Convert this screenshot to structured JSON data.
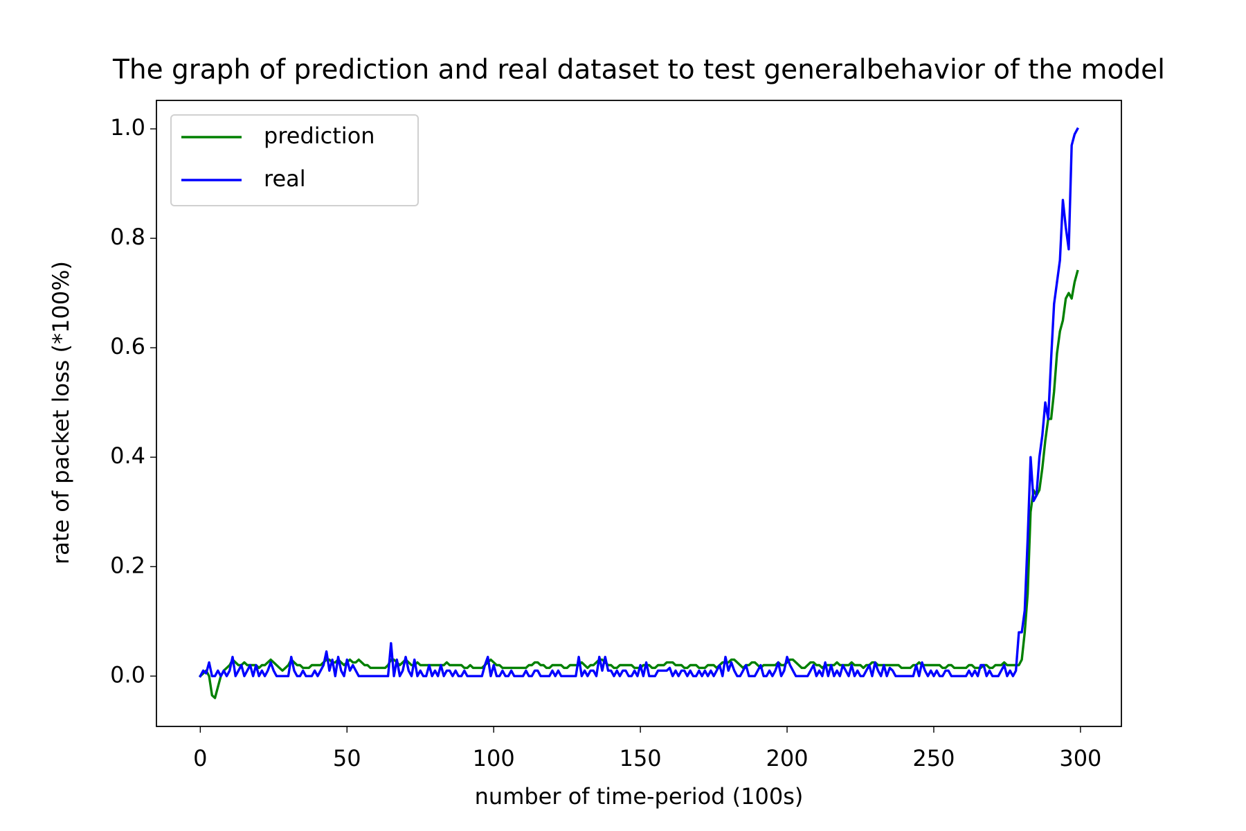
{
  "chart_data": {
    "type": "line",
    "title": "The graph of prediction and real dataset to test generalbehavior of the model",
    "x_label": "number of time-period (100s)",
    "y_label": "rate of packet loss (*100%)",
    "xlim": [
      -14.95,
      313.95
    ],
    "ylim": [
      -0.092,
      1.052
    ],
    "xticks": [
      0,
      50,
      100,
      150,
      200,
      250,
      300
    ],
    "yticks": [
      {
        "value": 0,
        "label": "0.0"
      },
      0.2,
      0.4,
      0.6,
      0.8,
      {
        "value": 1,
        "label": "1.0"
      }
    ],
    "legend": "upper left",
    "grid": false,
    "x": [
      0,
      1,
      2,
      3,
      4,
      5,
      6,
      7,
      8,
      9,
      10,
      11,
      12,
      13,
      14,
      15,
      16,
      17,
      18,
      19,
      20,
      21,
      22,
      23,
      24,
      25,
      26,
      27,
      28,
      29,
      30,
      31,
      32,
      33,
      34,
      35,
      36,
      37,
      38,
      39,
      40,
      41,
      42,
      43,
      44,
      45,
      46,
      47,
      48,
      49,
      50,
      51,
      52,
      53,
      54,
      55,
      56,
      57,
      58,
      59,
      60,
      61,
      62,
      63,
      64,
      65,
      66,
      67,
      68,
      69,
      70,
      71,
      72,
      73,
      74,
      75,
      76,
      77,
      78,
      79,
      80,
      81,
      82,
      83,
      84,
      85,
      86,
      87,
      88,
      89,
      90,
      91,
      92,
      93,
      94,
      95,
      96,
      97,
      98,
      99,
      100,
      101,
      102,
      103,
      104,
      105,
      106,
      107,
      108,
      109,
      110,
      111,
      112,
      113,
      114,
      115,
      116,
      117,
      118,
      119,
      120,
      121,
      122,
      123,
      124,
      125,
      126,
      127,
      128,
      129,
      130,
      131,
      132,
      133,
      134,
      135,
      136,
      137,
      138,
      139,
      140,
      141,
      142,
      143,
      144,
      145,
      146,
      147,
      148,
      149,
      150,
      151,
      152,
      153,
      154,
      155,
      156,
      157,
      158,
      159,
      160,
      161,
      162,
      163,
      164,
      165,
      166,
      167,
      168,
      169,
      170,
      171,
      172,
      173,
      174,
      175,
      176,
      177,
      178,
      179,
      180,
      181,
      182,
      183,
      184,
      185,
      186,
      187,
      188,
      189,
      190,
      191,
      192,
      193,
      194,
      195,
      196,
      197,
      198,
      199,
      200,
      201,
      202,
      203,
      204,
      205,
      206,
      207,
      208,
      209,
      210,
      211,
      212,
      213,
      214,
      215,
      216,
      217,
      218,
      219,
      220,
      221,
      222,
      223,
      224,
      225,
      226,
      227,
      228,
      229,
      230,
      231,
      232,
      233,
      234,
      235,
      236,
      237,
      238,
      239,
      240,
      241,
      242,
      243,
      244,
      245,
      246,
      247,
      248,
      249,
      250,
      251,
      252,
      253,
      254,
      255,
      256,
      257,
      258,
      259,
      260,
      261,
      262,
      263,
      264,
      265,
      266,
      267,
      268,
      269,
      270,
      271,
      272,
      273,
      274,
      275,
      276,
      277,
      278,
      279,
      280,
      281,
      282,
      283,
      284,
      285,
      286,
      287,
      288,
      289,
      290,
      291,
      292,
      293,
      294,
      295,
      296,
      297,
      298,
      299
    ],
    "series": [
      {
        "name": "prediction",
        "color": "#008000",
        "values": [
          0,
          0.005,
          0.01,
          0,
          -0.035,
          -0.04,
          -0.02,
          0,
          0.01,
          0.015,
          0.02,
          0.03,
          0.025,
          0.02,
          0.02,
          0.025,
          0.02,
          0.02,
          0.02,
          0.02,
          0.015,
          0.02,
          0.02,
          0.025,
          0.03,
          0.025,
          0.02,
          0.015,
          0.01,
          0.015,
          0.02,
          0.03,
          0.025,
          0.02,
          0.02,
          0.015,
          0.015,
          0.015,
          0.02,
          0.02,
          0.02,
          0.02,
          0.025,
          0.03,
          0.03,
          0.025,
          0.025,
          0.03,
          0.025,
          0.02,
          0.025,
          0.03,
          0.025,
          0.025,
          0.03,
          0.025,
          0.02,
          0.02,
          0.015,
          0.015,
          0.015,
          0.015,
          0.015,
          0.015,
          0.02,
          0.03,
          0.03,
          0.025,
          0.02,
          0.025,
          0.03,
          0.025,
          0.02,
          0.02,
          0.025,
          0.02,
          0.02,
          0.02,
          0.02,
          0.02,
          0.02,
          0.02,
          0.02,
          0.02,
          0.025,
          0.02,
          0.02,
          0.02,
          0.02,
          0.02,
          0.015,
          0.015,
          0.02,
          0.015,
          0.015,
          0.015,
          0.015,
          0.02,
          0.025,
          0.03,
          0.025,
          0.02,
          0.02,
          0.015,
          0.015,
          0.015,
          0.015,
          0.015,
          0.015,
          0.015,
          0.015,
          0.015,
          0.02,
          0.02,
          0.025,
          0.025,
          0.02,
          0.02,
          0.015,
          0.015,
          0.02,
          0.02,
          0.02,
          0.02,
          0.015,
          0.015,
          0.02,
          0.02,
          0.02,
          0.02,
          0.025,
          0.02,
          0.015,
          0.02,
          0.02,
          0.025,
          0.03,
          0.03,
          0.025,
          0.02,
          0.02,
          0.015,
          0.015,
          0.02,
          0.02,
          0.02,
          0.02,
          0.02,
          0.015,
          0.015,
          0.015,
          0.02,
          0.02,
          0.02,
          0.015,
          0.015,
          0.02,
          0.02,
          0.02,
          0.025,
          0.025,
          0.025,
          0.02,
          0.02,
          0.02,
          0.015,
          0.015,
          0.02,
          0.02,
          0.02,
          0.015,
          0.015,
          0.015,
          0.02,
          0.02,
          0.02,
          0.015,
          0.02,
          0.025,
          0.025,
          0.025,
          0.03,
          0.03,
          0.025,
          0.02,
          0.015,
          0.02,
          0.02,
          0.025,
          0.025,
          0.02,
          0.015,
          0.02,
          0.02,
          0.02,
          0.02,
          0.02,
          0.025,
          0.02,
          0.02,
          0.025,
          0.03,
          0.03,
          0.025,
          0.02,
          0.015,
          0.015,
          0.02,
          0.025,
          0.025,
          0.02,
          0.02,
          0.015,
          0.02,
          0.02,
          0.02,
          0.02,
          0.025,
          0.02,
          0.02,
          0.02,
          0.02,
          0.025,
          0.02,
          0.02,
          0.02,
          0.015,
          0.02,
          0.02,
          0.025,
          0.025,
          0.02,
          0.02,
          0.02,
          0.02,
          0.02,
          0.02,
          0.02,
          0.02,
          0.015,
          0.015,
          0.015,
          0.015,
          0.02,
          0.02,
          0.025,
          0.02,
          0.02,
          0.02,
          0.02,
          0.02,
          0.02,
          0.02,
          0.015,
          0.015,
          0.02,
          0.02,
          0.015,
          0.015,
          0.015,
          0.015,
          0.015,
          0.02,
          0.02,
          0.015,
          0.015,
          0.015,
          0.02,
          0.02,
          0.015,
          0.015,
          0.02,
          0.02,
          0.02,
          0.025,
          0.02,
          0.02,
          0.02,
          0.02,
          0.02,
          0.03,
          0.08,
          0.15,
          0.3,
          0.34,
          0.33,
          0.34,
          0.38,
          0.43,
          0.47,
          0.47,
          0.52,
          0.59,
          0.63,
          0.65,
          0.69,
          0.7,
          0.69,
          0.72,
          0.74
        ]
      },
      {
        "name": "real",
        "color": "#0000ff",
        "values": [
          0,
          0.01,
          0.005,
          0.025,
          0,
          0,
          0.01,
          0,
          0.01,
          0,
          0.01,
          0.035,
          0,
          0.01,
          0.02,
          0,
          0.01,
          0.02,
          0,
          0.02,
          0,
          0.01,
          0,
          0.01,
          0.025,
          0.01,
          0,
          0,
          0,
          0,
          0,
          0.035,
          0.01,
          0,
          0,
          0.01,
          0,
          0,
          0,
          0.01,
          0,
          0.01,
          0.02,
          0.045,
          0.01,
          0.03,
          0,
          0.035,
          0.01,
          0,
          0.03,
          0.01,
          0.02,
          0.01,
          0,
          0,
          0,
          0,
          0,
          0,
          0,
          0,
          0,
          0,
          0,
          0.06,
          0,
          0.03,
          0,
          0.01,
          0.035,
          0.01,
          0,
          0.03,
          0,
          0.01,
          0,
          0,
          0.02,
          0,
          0.01,
          0,
          0.02,
          0,
          0.01,
          0.01,
          0,
          0.01,
          0,
          0,
          0.01,
          0,
          0,
          0,
          0,
          0,
          0,
          0.02,
          0.035,
          0,
          0.02,
          0,
          0,
          0.01,
          0,
          0,
          0.01,
          0,
          0,
          0,
          0,
          0.01,
          0,
          0,
          0.01,
          0.01,
          0,
          0,
          0,
          0,
          0.01,
          0,
          0.01,
          0,
          0,
          0,
          0,
          0,
          0,
          0.035,
          0,
          0.01,
          0,
          0.01,
          0.01,
          0,
          0.035,
          0.01,
          0.035,
          0.01,
          0.01,
          0,
          0.01,
          0,
          0.01,
          0.01,
          0,
          0,
          0.01,
          0,
          0.02,
          0,
          0.025,
          0,
          0,
          0,
          0.01,
          0.01,
          0.01,
          0.01,
          0.015,
          0,
          0.01,
          0,
          0.01,
          0.01,
          0,
          0.01,
          0,
          0,
          0.01,
          0,
          0.01,
          0,
          0.01,
          0,
          0.01,
          0.02,
          0,
          0.035,
          0.01,
          0.025,
          0.01,
          0,
          0,
          0.01,
          0.02,
          0,
          0,
          0,
          0.01,
          0.02,
          0,
          0,
          0.01,
          0,
          0.01,
          0.025,
          0,
          0.01,
          0.035,
          0.02,
          0.01,
          0,
          0,
          0,
          0,
          0,
          0.01,
          0.02,
          0,
          0.01,
          0,
          0.025,
          0,
          0.02,
          0,
          0.01,
          0,
          0.02,
          0.01,
          0,
          0.02,
          0,
          0.01,
          0,
          0,
          0.01,
          0.02,
          0,
          0.025,
          0.01,
          0,
          0.02,
          0,
          0.015,
          0.01,
          0,
          0,
          0,
          0,
          0,
          0,
          0,
          0.02,
          0,
          0.025,
          0.01,
          0,
          0.01,
          0,
          0.01,
          0,
          0,
          0.01,
          0.01,
          0,
          0,
          0,
          0,
          0,
          0,
          0.01,
          0,
          0.01,
          0,
          0.02,
          0.02,
          0,
          0.01,
          0,
          0,
          0,
          0.01,
          0.02,
          0,
          0.01,
          0,
          0.01,
          0.08,
          0.08,
          0.12,
          0.25,
          0.4,
          0.32,
          0.33,
          0.4,
          0.44,
          0.5,
          0.47,
          0.58,
          0.68,
          0.72,
          0.76,
          0.87,
          0.82,
          0.78,
          0.97,
          0.99,
          1.0
        ]
      }
    ]
  }
}
